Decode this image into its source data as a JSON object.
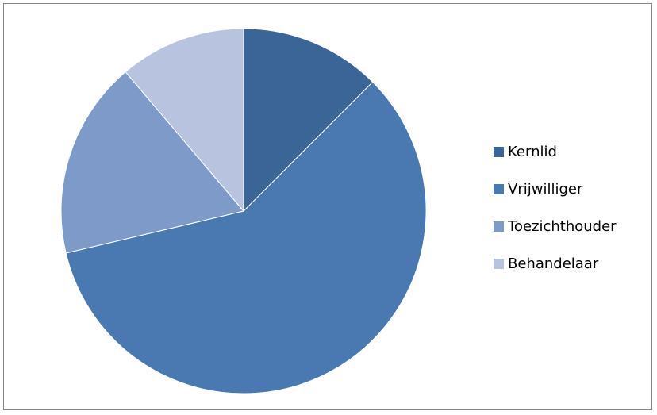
{
  "chart_data": {
    "type": "pie",
    "title": "",
    "categories": [
      "Kernlid",
      "Vrijwilliger",
      "Toezichthouder",
      "Behandelaar"
    ],
    "values": [
      12.5,
      58.8,
      17.5,
      11.2
    ],
    "colors": [
      "#3b6497",
      "#4a79b1",
      "#7e9ac8",
      "#b8c4df"
    ],
    "start_angle_deg": 0,
    "direction": "clockwise",
    "legend_position": "right"
  },
  "legend": {
    "items": [
      {
        "label": "Kernlid",
        "color": "#3b6497"
      },
      {
        "label": "Vrijwilliger",
        "color": "#4a79b1"
      },
      {
        "label": "Toezichthouder",
        "color": "#7e9ac8"
      },
      {
        "label": "Behandelaar",
        "color": "#b8c4df"
      }
    ]
  }
}
